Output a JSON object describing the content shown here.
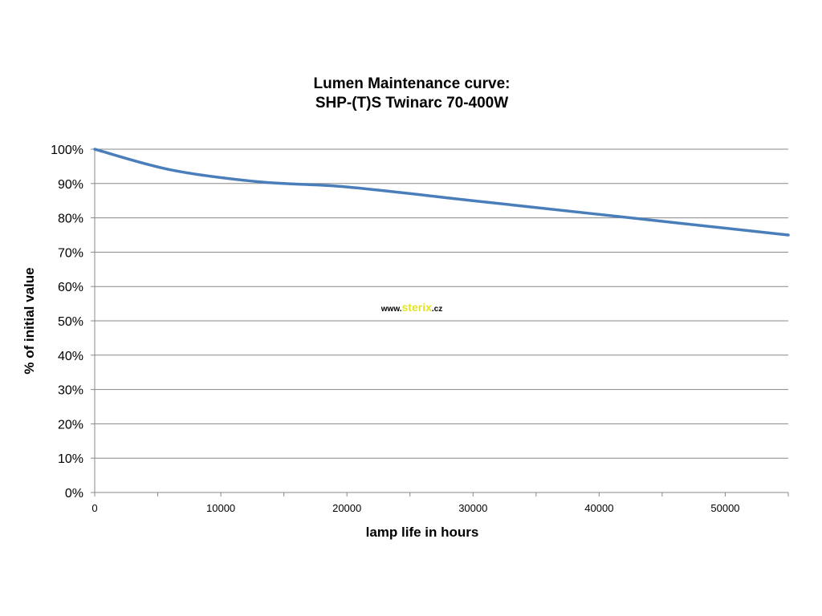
{
  "chart_data": {
    "type": "line",
    "title_lines": [
      "Lumen Maintenance curve:",
      "SHP-(T)S Twinarc 70-400W"
    ],
    "xlabel": "lamp life in hours",
    "ylabel": "% of initial value",
    "xlim": [
      0,
      55000
    ],
    "ylim": [
      0,
      1
    ],
    "x_ticks": [
      0,
      10000,
      20000,
      30000,
      40000,
      50000
    ],
    "x_tick_labels": [
      "0",
      "10000",
      "20000",
      "30000",
      "40000",
      "50000"
    ],
    "y_ticks": [
      0,
      0.1,
      0.2,
      0.3,
      0.4,
      0.5,
      0.6,
      0.7,
      0.8,
      0.9,
      1.0
    ],
    "y_tick_labels": [
      "0%",
      "10%",
      "20%",
      "30%",
      "40%",
      "50%",
      "60%",
      "70%",
      "80%",
      "90%",
      "100%"
    ],
    "grid": true,
    "legend": "none",
    "series": [
      {
        "color": "#4a7ebb",
        "x": [
          0,
          6000,
          13000,
          20000,
          30000,
          40000,
          55000
        ],
        "y": [
          1.0,
          0.94,
          0.905,
          0.89,
          0.85,
          0.81,
          0.75
        ]
      }
    ],
    "watermark": {
      "prefix": "www.",
      "brand": "sterix",
      "suffix": ".cz",
      "brand_color": "#e3e32a"
    }
  }
}
